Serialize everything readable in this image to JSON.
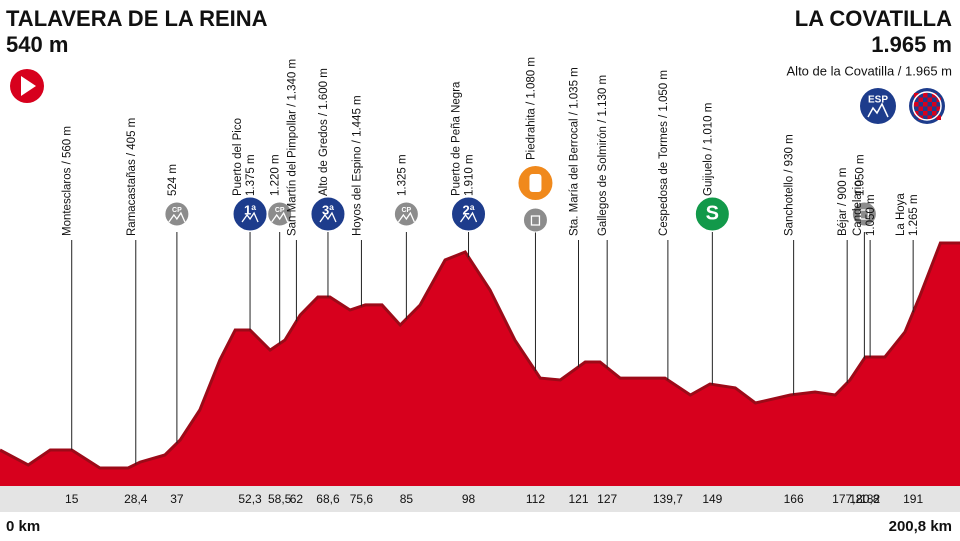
{
  "chart_data": {
    "type": "area",
    "color": "#d7001d",
    "edge_color": "#9c0a18",
    "start": {
      "name": "TALAVERA DE LA REINA",
      "altitude": "540 m",
      "km_label": "0 km"
    },
    "finish": {
      "name": "LA COVATILLA",
      "altitude": "1.965 m",
      "note": "Alto de la Covatilla / 1.965 m",
      "badge": "ESP",
      "km_label": "200,8 km"
    },
    "x": [
      0,
      5.9,
      10.5,
      15,
      20.9,
      26.8,
      29.3,
      34.5,
      37.7,
      41.8,
      46,
      49.2,
      52.3,
      56.5,
      59.6,
      62.8,
      66.5,
      69,
      73.2,
      76.4,
      79.9,
      83.7,
      87.9,
      93.1,
      97.3,
      102.5,
      107.7,
      113,
      117.2,
      122.4,
      125.5,
      129.7,
      139.1,
      144.4,
      148.5,
      153.8,
      158,
      165.3,
      170.5,
      174.7,
      177.8,
      181,
      185.1,
      189.3,
      192.5,
      196.7,
      200.8
    ],
    "values": [
      538,
      435,
      538,
      538,
      414,
      414,
      455,
      504,
      607,
      814,
      1159,
      1365,
      1365,
      1227,
      1296,
      1469,
      1593,
      1593,
      1503,
      1538,
      1538,
      1400,
      1538,
      1848,
      1903,
      1641,
      1296,
      1034,
      1021,
      1145,
      1145,
      1034,
      1034,
      917,
      993,
      966,
      862,
      917,
      938,
      917,
      1021,
      1179,
      1179,
      1352,
      1607,
      1965,
      1965
    ],
    "xlim": [
      0,
      200.8
    ],
    "ylim": [
      290,
      3640
    ],
    "xticks": [
      15,
      {
        "value": 28.4,
        "label": "28,4"
      },
      37,
      {
        "value": 52.3,
        "label": "52,3"
      },
      {
        "value": 58.5,
        "label": "58,5"
      },
      62,
      {
        "value": 68.6,
        "label": "68,6"
      },
      {
        "value": 75.6,
        "label": "75,6"
      },
      85,
      98,
      112,
      121,
      127,
      {
        "value": 139.7,
        "label": "139,7"
      },
      149,
      166,
      {
        "value": 177.2,
        "label": "177,2"
      },
      {
        "value": 180.8,
        "label": "180,8"
      },
      182,
      191
    ],
    "waypoints": [
      {
        "lines": [
          "Montesclaros / 560 m"
        ],
        "kind": "plain"
      },
      {
        "lines": [
          "Ramacastañas / 405 m"
        ],
        "kind": "plain"
      },
      {
        "lines": [
          "524 m"
        ],
        "kind": "cp",
        "badge": "CP"
      },
      {
        "lines": [
          "Puerto del Pico",
          "1.375 m"
        ],
        "kind": "climb",
        "badge": "1ª"
      },
      {
        "lines": [
          "1.220 m"
        ],
        "kind": "cp",
        "badge": "CP"
      },
      {
        "lines": [
          "San Martín del Pimpollar / 1.340 m"
        ],
        "kind": "plain"
      },
      {
        "lines": [
          "Alto de Gredos / 1.600 m"
        ],
        "kind": "climb",
        "badge": "3ª"
      },
      {
        "lines": [
          "Hoyos del Espino / 1.445 m"
        ],
        "kind": "plain"
      },
      {
        "lines": [
          "1.325 m"
        ],
        "kind": "cp",
        "badge": "CP"
      },
      {
        "lines": [
          "Puerto de Peña Negra",
          "1.910 m"
        ],
        "kind": "climb",
        "badge": "2ª"
      },
      {
        "lines": [
          "Piedrahita / 1.080 m"
        ],
        "kind": "feed"
      },
      {
        "lines": [
          "Sta. María del Berrocal / 1.035 m"
        ],
        "kind": "plain"
      },
      {
        "lines": [
          "Gallegos de Solmirón / 1.130 m"
        ],
        "kind": "plain"
      },
      {
        "lines": [
          "Cespedosa de Tormes / 1.050 m"
        ],
        "kind": "plain"
      },
      {
        "lines": [
          "Guijuelo / 1.010 m"
        ],
        "kind": "sprint",
        "badge": "S"
      },
      {
        "lines": [
          "Sanchotello / 930 m"
        ],
        "kind": "plain"
      },
      {
        "lines": [
          "Béjar / 900 m"
        ],
        "kind": "plain"
      },
      {
        "lines": [
          "1.050 m"
        ],
        "kind": "bin"
      },
      {
        "lines": [
          "Candelario",
          "1.050 m"
        ],
        "kind": "plain"
      },
      {
        "lines": [
          "La Hoya",
          "1.265 m"
        ],
        "kind": "plain"
      }
    ]
  }
}
